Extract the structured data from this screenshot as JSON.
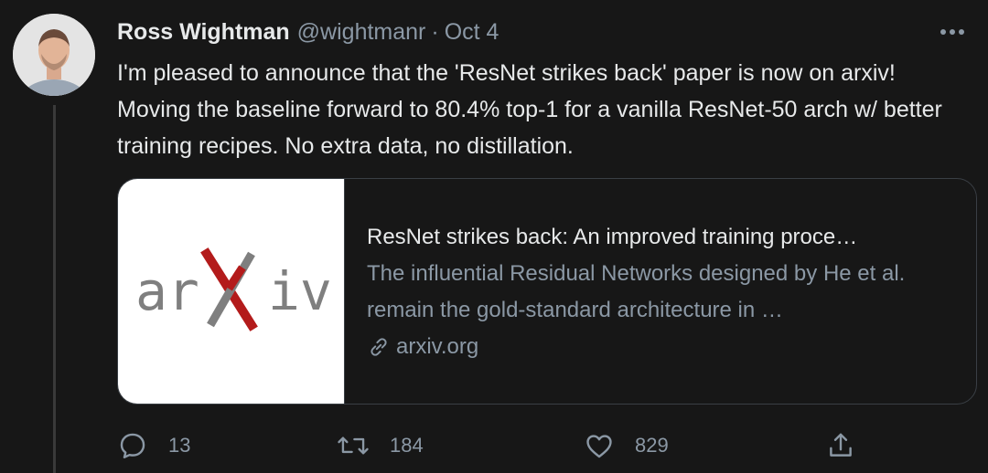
{
  "tweet": {
    "author_name": "Ross Wightman",
    "author_handle": "@wightmanr",
    "separator": "·",
    "date": "Oct 4",
    "text": "I'm pleased to announce that the 'ResNet strikes back' paper is now on arxiv! Moving the baseline forward to 80.4% top-1 for a vanilla ResNet-50 arch w/ better training recipes. No extra data, no distillation.",
    "card": {
      "logo_text": "arXiv",
      "title": "ResNet strikes back: An improved training proce…",
      "description": "The influential Residual Networks designed by He et al. remain the gold-standard architecture in …",
      "domain": "arxiv.org"
    },
    "actions": {
      "reply_count": "13",
      "retweet_count": "184",
      "like_count": "829"
    }
  },
  "colors": {
    "background": "#171717",
    "text_primary": "#e7e9ea",
    "text_secondary": "#8b98a5",
    "arxiv_gray": "#7f7f7f",
    "arxiv_red": "#b31b1b"
  },
  "icons": [
    "more-icon",
    "link-icon",
    "reply-icon",
    "retweet-icon",
    "like-icon",
    "share-icon"
  ]
}
